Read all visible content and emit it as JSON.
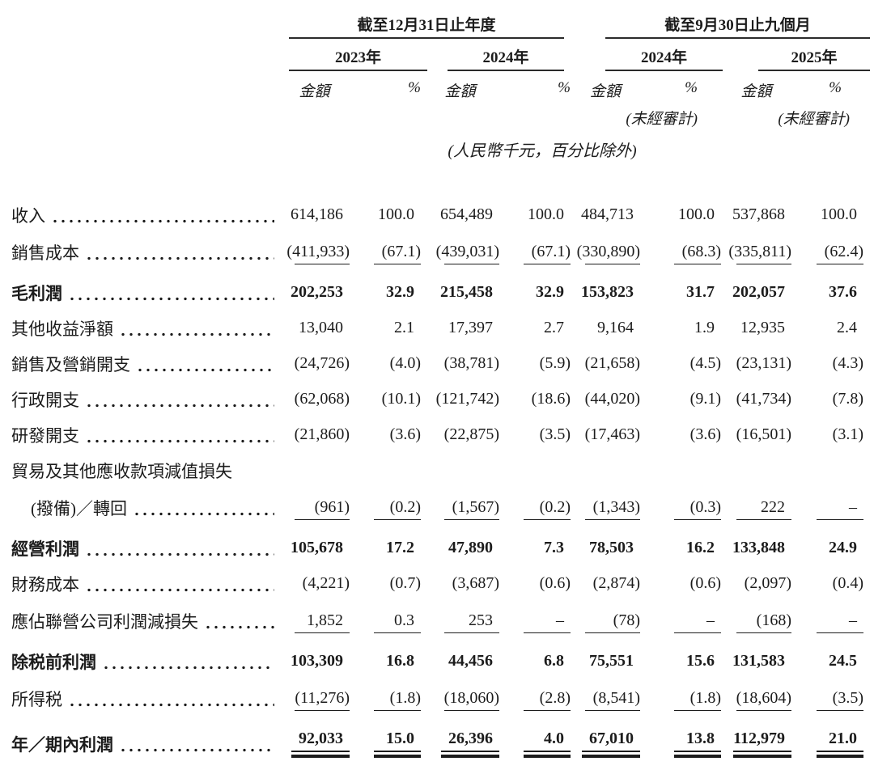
{
  "header": {
    "groups": [
      {
        "title": "截至12月31日止年度",
        "years": [
          "2023年",
          "2024年"
        ]
      },
      {
        "title": "截至9月30日止九個月",
        "years": [
          "2024年",
          "2025年"
        ],
        "unaudited": "(未經審計)"
      }
    ],
    "amount_label": "金額",
    "percent_label": "%",
    "unit_note": "(人民幣千元，百分比除外)"
  },
  "rows": [
    {
      "label": "收入",
      "dots": true,
      "bold": false,
      "indent": false,
      "underline": "none",
      "values": [
        "614,186",
        "100.0",
        "654,489",
        "100.0",
        "484,713",
        "100.0",
        "537,868",
        "100.0"
      ]
    },
    {
      "label": "銷售成本",
      "dots": true,
      "bold": false,
      "indent": false,
      "underline": "single",
      "values": [
        "(411,933)",
        "(67.1)",
        "(439,031)",
        "(67.1)",
        "(330,890)",
        "(68.3)",
        "(335,811)",
        "(62.4)"
      ]
    },
    {
      "label": "毛利潤",
      "dots": true,
      "bold": true,
      "indent": false,
      "underline": "none",
      "values": [
        "202,253",
        "32.9",
        "215,458",
        "32.9",
        "153,823",
        "31.7",
        "202,057",
        "37.6"
      ]
    },
    {
      "label": "其他收益淨額",
      "dots": true,
      "bold": false,
      "indent": false,
      "underline": "none",
      "values": [
        "13,040",
        "2.1",
        "17,397",
        "2.7",
        "9,164",
        "1.9",
        "12,935",
        "2.4"
      ]
    },
    {
      "label": "銷售及營銷開支",
      "dots": true,
      "bold": false,
      "indent": false,
      "underline": "none",
      "values": [
        "(24,726)",
        "(4.0)",
        "(38,781)",
        "(5.9)",
        "(21,658)",
        "(4.5)",
        "(23,131)",
        "(4.3)"
      ]
    },
    {
      "label": "行政開支",
      "dots": true,
      "bold": false,
      "indent": false,
      "underline": "none",
      "values": [
        "(62,068)",
        "(10.1)",
        "(121,742)",
        "(18.6)",
        "(44,020)",
        "(9.1)",
        "(41,734)",
        "(7.8)"
      ]
    },
    {
      "label": "研發開支",
      "dots": true,
      "bold": false,
      "indent": false,
      "underline": "none",
      "values": [
        "(21,860)",
        "(3.6)",
        "(22,875)",
        "(3.5)",
        "(17,463)",
        "(3.6)",
        "(16,501)",
        "(3.1)"
      ]
    },
    {
      "label": "貿易及其他應收款項減值損失",
      "dots": false,
      "bold": false,
      "indent": false,
      "underline": "none",
      "values": null
    },
    {
      "label": "(撥備)／轉回",
      "dots": true,
      "bold": false,
      "indent": true,
      "underline": "single",
      "values": [
        "(961)",
        "(0.2)",
        "(1,567)",
        "(0.2)",
        "(1,343)",
        "(0.3)",
        "222",
        "–"
      ]
    },
    {
      "label": "經營利潤",
      "dots": true,
      "bold": true,
      "indent": false,
      "underline": "none",
      "values": [
        "105,678",
        "17.2",
        "47,890",
        "7.3",
        "78,503",
        "16.2",
        "133,848",
        "24.9"
      ]
    },
    {
      "label": "財務成本",
      "dots": true,
      "bold": false,
      "indent": false,
      "underline": "none",
      "values": [
        "(4,221)",
        "(0.7)",
        "(3,687)",
        "(0.6)",
        "(2,874)",
        "(0.6)",
        "(2,097)",
        "(0.4)"
      ]
    },
    {
      "label": "應佔聯營公司利潤減損失",
      "dots": true,
      "bold": false,
      "indent": false,
      "underline": "single",
      "values": [
        "1,852",
        "0.3",
        "253",
        "–",
        "(78)",
        "–",
        "(168)",
        "–"
      ]
    },
    {
      "label": "除税前利潤",
      "dots": true,
      "bold": true,
      "indent": false,
      "underline": "none",
      "values": [
        "103,309",
        "16.8",
        "44,456",
        "6.8",
        "75,551",
        "15.6",
        "131,583",
        "24.5"
      ]
    },
    {
      "label": "所得税",
      "dots": true,
      "bold": false,
      "indent": false,
      "underline": "single",
      "values": [
        "(11,276)",
        "(1.8)",
        "(18,060)",
        "(2.8)",
        "(8,541)",
        "(1.8)",
        "(18,604)",
        "(3.5)"
      ]
    },
    {
      "label": "年／期內利潤",
      "dots": true,
      "bold": true,
      "indent": false,
      "underline": "double",
      "values": [
        "92,033",
        "15.0",
        "26,396",
        "4.0",
        "67,010",
        "13.8",
        "112,979",
        "21.0"
      ]
    }
  ]
}
